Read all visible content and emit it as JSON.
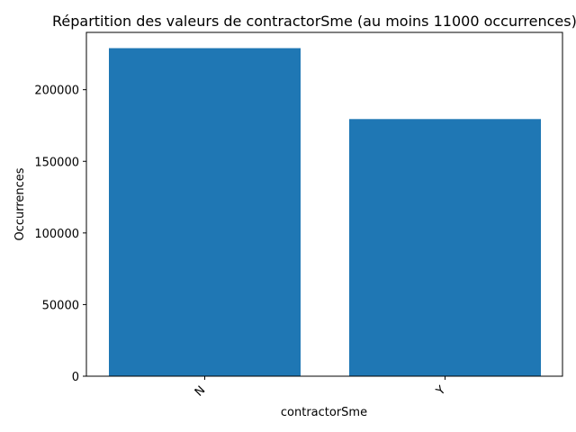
{
  "chart_data": {
    "type": "bar",
    "title": "Répartition des valeurs de contractorSme (au moins 11000 occurrences)",
    "xlabel": "contractorSme",
    "ylabel": "Occurrences",
    "categories": [
      "N",
      "Y"
    ],
    "values": [
      229000,
      179500
    ],
    "ylim": [
      0,
      240000
    ],
    "yticks": [
      0,
      50000,
      100000,
      150000,
      200000
    ],
    "ytick_labels": [
      "0",
      "50000",
      "100000",
      "150000",
      "200000"
    ],
    "grid": false,
    "bar_color": "#1f77b4",
    "x_tick_rotation": "45"
  }
}
